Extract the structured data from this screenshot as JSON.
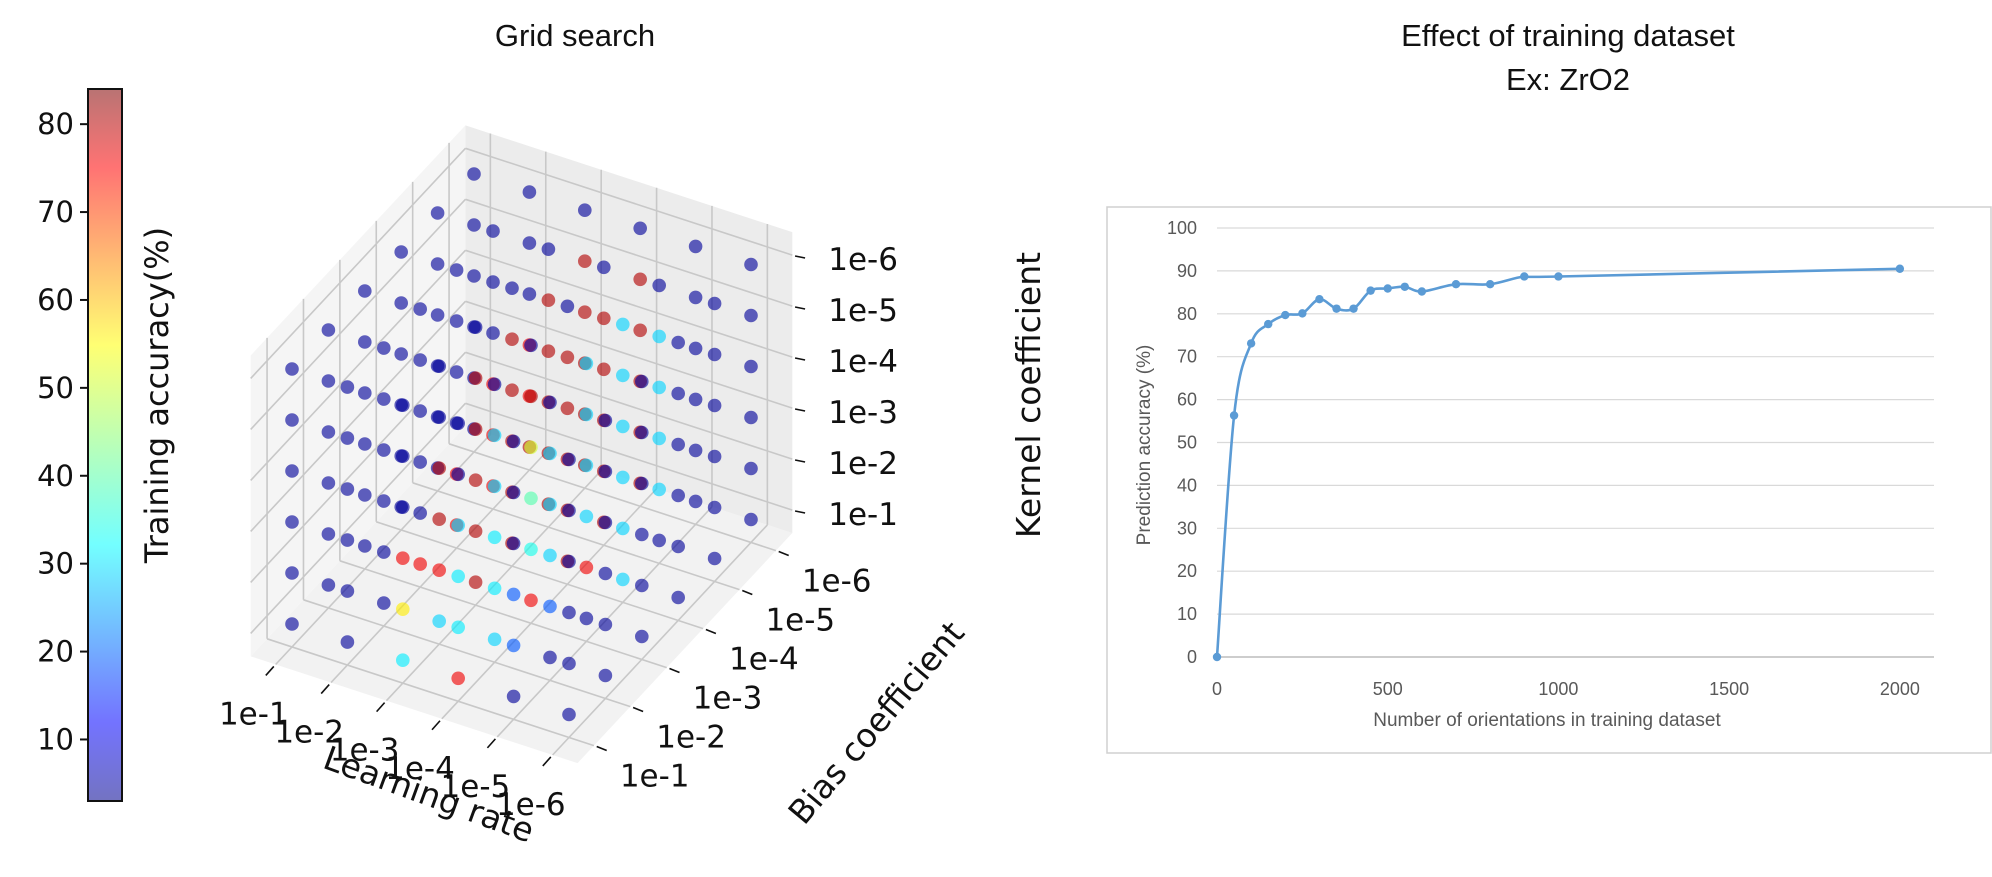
{
  "chart_data": [
    {
      "type": "scatter",
      "title": "Grid search",
      "subtitle": "",
      "colorbar": {
        "label": "Training accuracy(%)",
        "ticks": [
          10,
          20,
          30,
          40,
          50,
          60,
          70,
          80
        ],
        "range": [
          3,
          84
        ],
        "colormap": "jet"
      },
      "axes": {
        "x": {
          "label": "Learning rate",
          "ticks": [
            "1e-1",
            "1e-2",
            "1e-3",
            "1e-4",
            "1e-5",
            "1e-6"
          ]
        },
        "y": {
          "label": "Bias coefficient",
          "ticks": [
            "1e-1",
            "1e-2",
            "1e-3",
            "1e-4",
            "1e-5",
            "1e-6"
          ]
        },
        "z": {
          "label": "Kernel coefficient",
          "ticks": [
            "1e-1",
            "1e-2",
            "1e-3",
            "1e-4",
            "1e-5",
            "1e-6"
          ]
        }
      },
      "grid": true,
      "accuracy_grid_note": "values[x][y][z] = training accuracy (%) for the 6x6x6 grid (x = learning rate, y = bias, z = kernel), estimated from point colors",
      "values": [
        [
          [
            5,
            5,
            5,
            5,
            5,
            5
          ],
          [
            5,
            5,
            5,
            5,
            5,
            5
          ],
          [
            5,
            5,
            5,
            5,
            5,
            5
          ],
          [
            5,
            5,
            5,
            5,
            5,
            5
          ],
          [
            5,
            5,
            5,
            5,
            5,
            5
          ],
          [
            5,
            5,
            5,
            5,
            5,
            5
          ]
        ],
        [
          [
            5,
            5,
            5,
            5,
            5,
            5
          ],
          [
            5,
            5,
            5,
            5,
            5,
            5
          ],
          [
            75,
            5,
            5,
            5,
            5,
            5
          ],
          [
            75,
            75,
            5,
            5,
            5,
            5
          ],
          [
            75,
            75,
            75,
            5,
            5,
            5
          ],
          [
            80,
            75,
            75,
            5,
            5,
            5
          ]
        ],
        [
          [
            32,
            55,
            75,
            5,
            5,
            5
          ],
          [
            30,
            75,
            80,
            80,
            5,
            5
          ],
          [
            80,
            80,
            80,
            80,
            80,
            5
          ],
          [
            80,
            80,
            80,
            80,
            80,
            5
          ],
          [
            80,
            80,
            80,
            80,
            80,
            5
          ],
          [
            80,
            80,
            80,
            80,
            80,
            5
          ]
        ],
        [
          [
            75,
            32,
            32,
            30,
            5,
            5
          ],
          [
            30,
            32,
            32,
            30,
            30,
            5
          ],
          [
            75,
            35,
            40,
            50,
            80,
            5
          ],
          [
            80,
            80,
            80,
            80,
            80,
            5
          ],
          [
            80,
            80,
            80,
            80,
            80,
            5
          ],
          [
            80,
            80,
            80,
            80,
            80,
            5
          ]
        ],
        [
          [
            5,
            20,
            20,
            5,
            5,
            5
          ],
          [
            5,
            20,
            30,
            30,
            30,
            5
          ],
          [
            5,
            75,
            30,
            30,
            30,
            30
          ],
          [
            30,
            30,
            30,
            30,
            30,
            30
          ],
          [
            5,
            30,
            30,
            30,
            30,
            5
          ],
          [
            5,
            5,
            5,
            5,
            5,
            5
          ]
        ],
        [
          [
            5,
            5,
            5,
            5,
            5,
            5
          ],
          [
            5,
            5,
            5,
            5,
            5,
            5
          ],
          [
            5,
            5,
            5,
            5,
            5,
            5
          ],
          [
            5,
            5,
            5,
            5,
            5,
            5
          ],
          [
            5,
            5,
            5,
            5,
            5,
            5
          ],
          [
            5,
            5,
            5,
            5,
            5,
            5
          ]
        ]
      ]
    },
    {
      "type": "line",
      "title": "Effect of training dataset",
      "subtitle": "Ex: ZrO2",
      "xlabel": "Number of orientations in training dataset",
      "ylabel": "Prediction accuracy (%)",
      "xlim": [
        0,
        2100
      ],
      "ylim": [
        0,
        100
      ],
      "xticks": [
        0,
        500,
        1000,
        1500,
        2000
      ],
      "yticks": [
        0,
        10,
        20,
        30,
        40,
        50,
        60,
        70,
        80,
        90,
        100
      ],
      "grid": true,
      "series": [
        {
          "name": "",
          "color": "#5b9bd5",
          "x": [
            0,
            50,
            100,
            150,
            200,
            250,
            300,
            350,
            400,
            450,
            500,
            550,
            600,
            700,
            800,
            900,
            1000,
            2000
          ],
          "y": [
            0,
            56.3,
            73.1,
            77.6,
            79.7,
            80.1,
            83.4,
            81.2,
            81.2,
            85.4,
            85.9,
            86.3,
            85.2,
            86.9,
            86.9,
            88.7,
            88.7,
            90.5
          ]
        }
      ]
    }
  ]
}
